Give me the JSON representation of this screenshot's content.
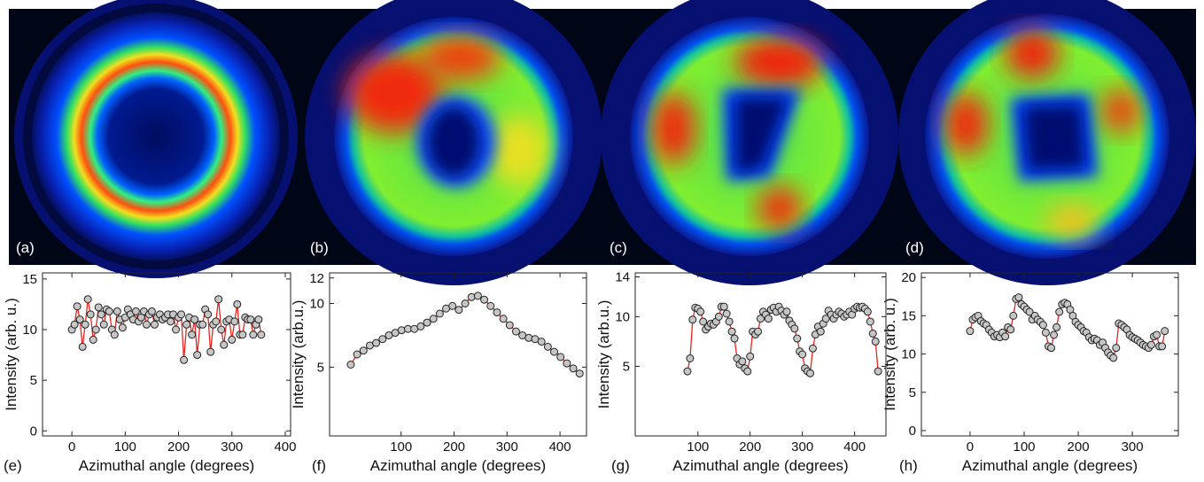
{
  "images": [
    {
      "label": "(a)"
    },
    {
      "label": "(b)"
    },
    {
      "label": "(c)"
    },
    {
      "label": "(d)"
    }
  ],
  "chart_data": [
    {
      "type": "line",
      "label": "(e)",
      "xlabel": "Azimuthal angle (degrees)",
      "ylabel": "Intensity (arb. u.)",
      "color": "#e8231e",
      "x": [
        0,
        5,
        10,
        15,
        20,
        25,
        30,
        35,
        40,
        45,
        50,
        55,
        60,
        65,
        70,
        75,
        80,
        85,
        90,
        95,
        100,
        105,
        110,
        115,
        120,
        125,
        130,
        135,
        140,
        145,
        150,
        155,
        160,
        165,
        170,
        175,
        180,
        185,
        190,
        195,
        200,
        205,
        210,
        215,
        220,
        225,
        230,
        235,
        240,
        245,
        250,
        255,
        260,
        265,
        270,
        275,
        280,
        285,
        290,
        295,
        300,
        305,
        310,
        315,
        320,
        325,
        330,
        335,
        340,
        345,
        350,
        355
      ],
      "values": [
        10.0,
        10.5,
        12.3,
        11.0,
        8.3,
        10.5,
        13.0,
        11.5,
        9.0,
        10.0,
        12.2,
        11.5,
        10.5,
        12.0,
        11.8,
        10.0,
        9.5,
        11.8,
        11.0,
        10.2,
        11.2,
        12.0,
        11.5,
        11.0,
        11.8,
        10.8,
        11.2,
        11.8,
        10.5,
        11.5,
        11.8,
        10.5,
        11.2,
        11.5,
        11.0,
        11.2,
        11.5,
        10.8,
        11.5,
        10.0,
        11.2,
        11.5,
        7.0,
        10.5,
        11.2,
        9.5,
        11.0,
        7.5,
        10.5,
        10.5,
        12.0,
        11.5,
        7.8,
        10.5,
        10.8,
        13.0,
        10.0,
        8.5,
        10.8,
        11.0,
        9.0,
        10.8,
        12.5,
        9.5,
        9.5,
        11.2,
        11.0,
        11.0,
        9.5,
        10.5,
        11.0,
        9.5
      ],
      "xlim": [
        -55,
        410
      ],
      "xticks": [
        0,
        100,
        200,
        300,
        400
      ],
      "ylim": [
        -0.5,
        15.6
      ],
      "yticks": [
        0,
        5,
        10,
        15
      ]
    },
    {
      "type": "line",
      "label": "(f)",
      "xlabel": "Azimuthal angle (degrees)",
      "ylabel": "Intensity (arb.u.)",
      "color": "#e8231e",
      "x": [
        5,
        17,
        29,
        41,
        53,
        65,
        77,
        89,
        101,
        113,
        125,
        137,
        149,
        161,
        173,
        185,
        197,
        209,
        221,
        233,
        245,
        257,
        269,
        281,
        293,
        305,
        317,
        329,
        341,
        353,
        365,
        377,
        389,
        401,
        413,
        425,
        437
      ],
      "values": [
        5.2,
        6.0,
        6.3,
        6.7,
        6.9,
        7.2,
        7.5,
        7.7,
        7.9,
        8.0,
        8.0,
        8.2,
        8.5,
        8.8,
        9.2,
        9.6,
        9.8,
        9.5,
        10.0,
        10.5,
        10.6,
        10.3,
        9.8,
        9.3,
        8.8,
        8.3,
        7.8,
        7.5,
        7.3,
        7.2,
        7.0,
        6.6,
        6.2,
        5.8,
        5.3,
        4.9,
        4.5
      ],
      "xlim": [
        -35,
        450
      ],
      "xticks": [
        100,
        200,
        300,
        400
      ],
      "ylim": [
        -0.4,
        12.4
      ],
      "yticks": [
        5,
        10,
        12
      ]
    },
    {
      "type": "line",
      "label": "(g)",
      "xlabel": "Azimuthal angle (degrees)",
      "ylabel": "Intensity (arb.u.)",
      "color": "#e8231e",
      "x": [
        80,
        85,
        90,
        95,
        100,
        105,
        110,
        115,
        120,
        125,
        130,
        135,
        140,
        145,
        150,
        155,
        160,
        165,
        170,
        175,
        180,
        185,
        190,
        195,
        200,
        205,
        210,
        215,
        220,
        225,
        230,
        235,
        240,
        245,
        250,
        255,
        260,
        265,
        270,
        275,
        280,
        285,
        290,
        295,
        300,
        305,
        310,
        315,
        320,
        325,
        330,
        335,
        340,
        345,
        350,
        355,
        360,
        365,
        370,
        375,
        380,
        385,
        390,
        395,
        400,
        405,
        410,
        415,
        420,
        425,
        430,
        435,
        440,
        445
      ],
      "values": [
        4.5,
        5.8,
        9.7,
        10.9,
        10.8,
        10.5,
        9.5,
        8.7,
        9.0,
        9.3,
        9.2,
        9.5,
        10.0,
        11.0,
        11.0,
        10.3,
        9.5,
        8.5,
        7.8,
        5.8,
        5.2,
        5.5,
        4.8,
        4.5,
        6.0,
        8.5,
        8.2,
        8.5,
        9.8,
        10.5,
        10.2,
        9.8,
        10.7,
        10.9,
        10.5,
        11.0,
        10.6,
        10.2,
        10.5,
        9.6,
        9.2,
        8.8,
        7.8,
        6.5,
        6.2,
        4.8,
        4.5,
        4.3,
        6.8,
        8.2,
        9.0,
        8.5,
        9.3,
        9.8,
        10.6,
        10.2,
        9.8,
        10.2,
        10.5,
        10.3,
        10.0,
        10.2,
        10.5,
        10.2,
        10.8,
        11.0,
        10.9,
        11.0,
        10.8,
        10.5,
        9.5,
        8.3,
        7.5,
        4.5
      ],
      "xlim": [
        -20,
        460
      ],
      "xticks": [
        100,
        200,
        300,
        400
      ],
      "ylim": [
        -2,
        14.4
      ],
      "yticks": [
        5,
        10,
        14
      ]
    },
    {
      "type": "line",
      "label": "(h)",
      "xlabel": "Azimuthal angle (degrees)",
      "ylabel": "Intensity (arb. u.)",
      "color": "#e8231e",
      "x": [
        0,
        5,
        10,
        15,
        20,
        25,
        30,
        35,
        40,
        45,
        50,
        55,
        60,
        65,
        70,
        75,
        80,
        85,
        90,
        95,
        100,
        105,
        110,
        115,
        120,
        125,
        130,
        135,
        140,
        145,
        150,
        155,
        160,
        165,
        170,
        175,
        180,
        185,
        190,
        195,
        200,
        205,
        210,
        215,
        220,
        225,
        230,
        235,
        240,
        245,
        250,
        255,
        260,
        265,
        270,
        275,
        280,
        285,
        290,
        295,
        300,
        305,
        310,
        315,
        320,
        325,
        330,
        335,
        340,
        345,
        350,
        355,
        360
      ],
      "values": [
        13,
        14.5,
        14.8,
        15,
        14.3,
        14,
        13.8,
        13.2,
        12.8,
        12.3,
        12.5,
        12.2,
        12.8,
        12.3,
        13.5,
        13.2,
        15,
        17.2,
        17.4,
        16.5,
        16.2,
        15.8,
        15.5,
        14.5,
        15,
        14.5,
        14.2,
        13.8,
        12.8,
        11,
        10.8,
        12.5,
        13.5,
        15.5,
        16.5,
        16.7,
        16.5,
        15.8,
        15,
        14.2,
        13.8,
        13.5,
        13,
        12.8,
        12.2,
        11.8,
        12,
        11.8,
        11.2,
        11.5,
        10.8,
        10.2,
        9.8,
        9.5,
        10.8,
        14,
        13.8,
        13.5,
        13.2,
        12.5,
        12.2,
        12,
        11.8,
        11.5,
        11.2,
        11,
        10.8,
        11.2,
        12.3,
        12.5,
        11,
        11,
        13
      ],
      "xlim": [
        -90,
        385
      ],
      "xticks": [
        0,
        100,
        200,
        300
      ],
      "ylim": [
        -0.7,
        20.6
      ],
      "yticks": [
        0,
        5,
        10,
        15,
        20
      ]
    }
  ]
}
